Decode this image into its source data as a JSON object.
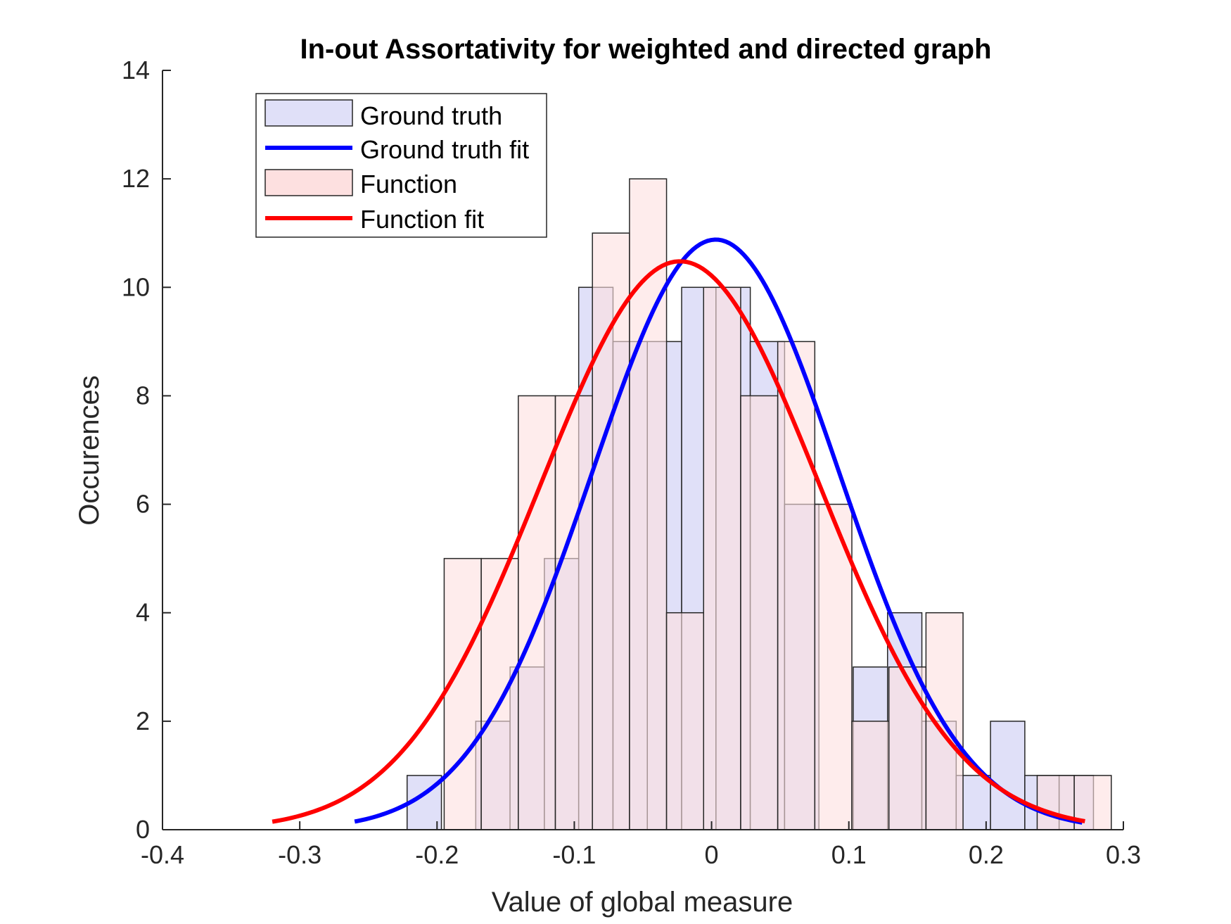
{
  "chart_data": {
    "type": "bar",
    "title": "In-out Assortativity for weighted and directed graph",
    "xlabel": "Value of global measure",
    "ylabel": "Occurences",
    "xlim": [
      -0.4,
      0.3
    ],
    "ylim": [
      0,
      14
    ],
    "xticks": [
      "-0.4",
      "-0.3",
      "-0.2",
      "-0.1",
      "0",
      "0.1",
      "0.2",
      "0.3"
    ],
    "yticks": [
      "0",
      "2",
      "4",
      "6",
      "8",
      "10",
      "12",
      "14"
    ],
    "grid": false,
    "legend_position": "top-left",
    "histograms": [
      {
        "name": "Ground truth",
        "color": "#e0e0f8",
        "bin_edges": [
          -0.2218,
          -0.1968,
          -0.1718,
          -0.1468,
          -0.1218,
          -0.0968,
          -0.0718,
          -0.0468,
          -0.0218,
          0.0032,
          0.0282,
          0.0532,
          0.0782,
          0.1032,
          0.1282,
          0.1532,
          0.1782,
          0.2032,
          0.2282,
          0.2532,
          0.2782
        ],
        "counts": [
          1,
          0,
          2,
          3,
          5,
          10,
          9,
          9,
          10,
          10,
          9,
          6,
          0,
          3,
          4,
          2,
          1,
          2,
          1,
          1
        ]
      },
      {
        "name": "Function",
        "color": "#fde0e0",
        "bin_edges": [
          -0.1948,
          -0.1678,
          -0.1408,
          -0.1138,
          -0.0868,
          -0.0598,
          -0.0328,
          -0.0058,
          0.0212,
          0.0482,
          0.0752,
          0.1022,
          0.1292,
          0.1562,
          0.1832,
          0.2102,
          0.2372,
          0.2642,
          0.2912
        ],
        "counts": [
          5,
          5,
          8,
          8,
          11,
          12,
          4,
          10,
          8,
          9,
          6,
          2,
          3,
          4,
          0,
          0,
          1,
          1
        ]
      }
    ],
    "series": [
      {
        "name": "Ground truth fit",
        "color": "#0000ff",
        "kind": "normal-fit",
        "peak": 10.88,
        "mean": 0.003,
        "sd": 0.0898,
        "x_range": [
          -0.26,
          0.27
        ]
      },
      {
        "name": "Function fit",
        "color": "#ff0000",
        "kind": "normal-fit",
        "peak": 10.48,
        "mean": -0.023,
        "sd": 0.1017,
        "x_range": [
          -0.32,
          0.272
        ]
      }
    ],
    "legend": [
      "Ground truth",
      "Ground truth fit",
      "Function",
      "Function fit"
    ]
  }
}
